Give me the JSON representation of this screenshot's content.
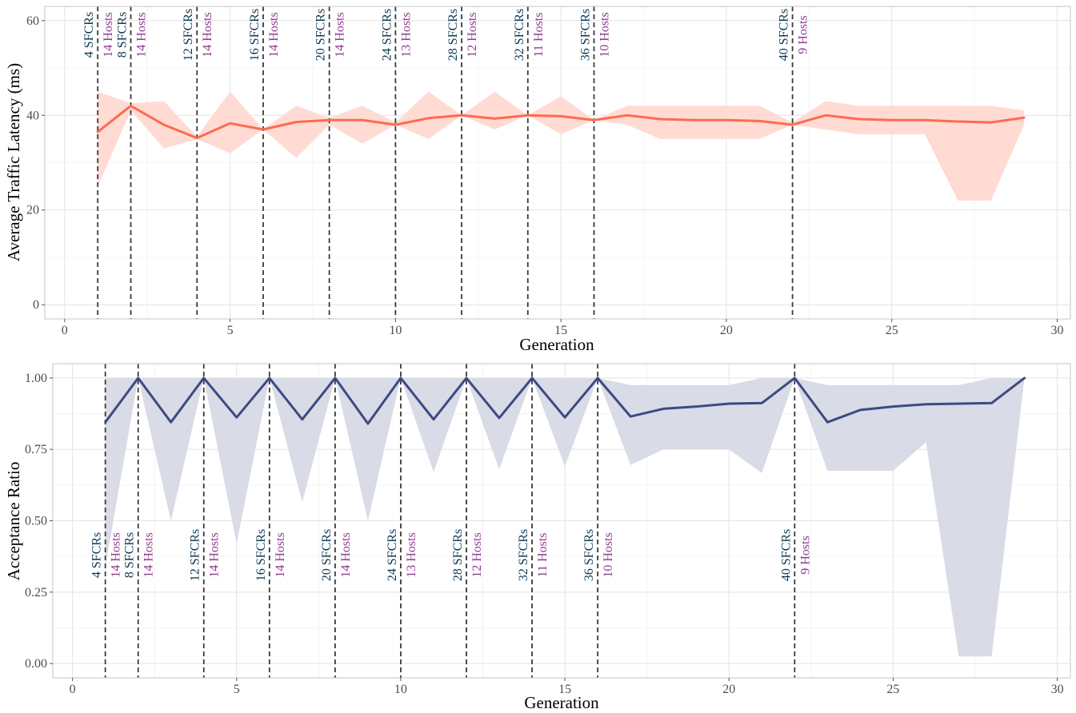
{
  "chart_data": [
    {
      "type": "line",
      "xlabel": "Generation",
      "ylabel": "Average Traffic Latency (ms)",
      "xlim": [
        -0.6,
        30.4
      ],
      "ylim": [
        -3,
        63
      ],
      "xticks": [
        0,
        5,
        10,
        15,
        20,
        25,
        30
      ],
      "yticks": [
        0,
        20,
        40,
        60
      ],
      "ytick_labels": [
        "0",
        "20",
        "40",
        "60"
      ],
      "grid": true,
      "line_color": "#fd6b51",
      "band_color": "#ffdbd3",
      "series": [
        {
          "x": [
            1,
            2,
            3,
            4,
            5,
            6,
            7,
            8,
            9,
            10,
            11,
            12,
            13,
            14,
            15,
            16,
            17,
            18,
            19,
            20,
            21,
            22,
            23,
            24,
            25,
            26,
            27,
            28,
            29
          ],
          "mean": [
            36.5,
            42,
            38,
            35.2,
            38.3,
            37,
            38.6,
            39,
            39,
            38,
            39.4,
            40,
            39.3,
            40,
            39.8,
            39,
            40,
            39.2,
            39,
            39,
            38.8,
            38,
            40,
            39.2,
            39,
            39,
            38.7,
            38.5,
            39.5
          ],
          "lower": [
            25,
            41,
            33,
            35,
            32,
            37,
            31,
            38,
            34,
            38,
            35,
            40,
            37,
            40,
            36,
            39,
            38,
            35,
            35,
            35,
            35,
            38,
            37,
            36,
            36,
            36,
            22,
            22,
            38
          ],
          "upper": [
            45,
            42.5,
            43,
            35.5,
            45,
            37,
            42,
            39.5,
            42,
            38.5,
            45,
            40,
            45,
            40,
            44,
            39,
            42,
            42,
            42,
            42,
            42,
            38.5,
            43,
            42,
            42,
            42,
            42,
            42,
            41
          ]
        }
      ],
      "markers": [
        {
          "x": 1,
          "sfcrs": "4 SFCRs",
          "hosts": "14 Hosts"
        },
        {
          "x": 2,
          "sfcrs": "8 SFCRs",
          "hosts": "14 Hosts"
        },
        {
          "x": 4,
          "sfcrs": "12 SFCRs",
          "hosts": "14 Hosts"
        },
        {
          "x": 6,
          "sfcrs": "16 SFCRs",
          "hosts": "14 Hosts"
        },
        {
          "x": 8,
          "sfcrs": "20 SFCRs",
          "hosts": "14 Hosts"
        },
        {
          "x": 10,
          "sfcrs": "24 SFCRs",
          "hosts": "13 Hosts"
        },
        {
          "x": 12,
          "sfcrs": "28 SFCRs",
          "hosts": "12 Hosts"
        },
        {
          "x": 14,
          "sfcrs": "32 SFCRs",
          "hosts": "11 Hosts"
        },
        {
          "x": 16,
          "sfcrs": "36 SFCRs",
          "hosts": "10 Hosts"
        },
        {
          "x": 22,
          "sfcrs": "40 SFCRs",
          "hosts": "9 Hosts"
        }
      ],
      "marker_label_value": 57,
      "sfcr_color": "#0b3954",
      "hosts_color": "#8e3b91"
    },
    {
      "type": "line",
      "xlabel": "Generation",
      "ylabel": "Acceptance Ratio",
      "xlim": [
        -0.6,
        30.4
      ],
      "ylim": [
        -0.05,
        1.05
      ],
      "xticks": [
        0,
        5,
        10,
        15,
        20,
        25,
        30
      ],
      "yticks": [
        0,
        0.25,
        0.5,
        0.75,
        1
      ],
      "ytick_labels": [
        "0.00",
        "0.25",
        "0.50",
        "0.75",
        "1.00"
      ],
      "grid": true,
      "line_color": "#3d4a82",
      "band_color": "#d9dbe6",
      "series": [
        {
          "x": [
            1,
            2,
            3,
            4,
            5,
            6,
            7,
            8,
            9,
            10,
            11,
            12,
            13,
            14,
            15,
            16,
            17,
            18,
            19,
            20,
            21,
            22,
            23,
            24,
            25,
            26,
            27,
            28,
            29
          ],
          "mean": [
            0.845,
            1,
            0.845,
            1,
            0.862,
            1,
            0.855,
            1,
            0.84,
            1,
            0.855,
            1,
            0.86,
            1,
            0.862,
            1,
            0.865,
            0.892,
            0.9,
            0.91,
            0.912,
            1,
            0.845,
            0.888,
            0.9,
            0.908,
            0.91,
            0.912,
            1
          ],
          "lower": [
            0.34,
            1,
            0.5,
            1,
            0.42,
            1,
            0.565,
            1,
            0.5,
            1,
            0.67,
            1,
            0.68,
            1,
            0.69,
            1,
            0.695,
            0.75,
            0.75,
            0.75,
            0.667,
            1,
            0.675,
            0.675,
            0.675,
            0.775,
            0.025,
            0.025,
            1
          ],
          "upper": [
            1,
            1,
            1,
            1,
            1,
            1,
            1,
            1,
            1,
            1,
            1,
            1,
            1,
            1,
            1,
            1,
            0.975,
            0.975,
            0.975,
            0.975,
            1,
            1,
            0.975,
            0.975,
            0.975,
            0.975,
            0.975,
            1,
            1
          ]
        }
      ],
      "markers": [
        {
          "x": 1,
          "sfcrs": "4 SFCRs",
          "hosts": "14 Hosts"
        },
        {
          "x": 2,
          "sfcrs": "8 SFCRs",
          "hosts": "14 Hosts"
        },
        {
          "x": 4,
          "sfcrs": "12 SFCRs",
          "hosts": "14 Hosts"
        },
        {
          "x": 6,
          "sfcrs": "16 SFCRs",
          "hosts": "14 Hosts"
        },
        {
          "x": 8,
          "sfcrs": "20 SFCRs",
          "hosts": "14 Hosts"
        },
        {
          "x": 10,
          "sfcrs": "24 SFCRs",
          "hosts": "13 Hosts"
        },
        {
          "x": 12,
          "sfcrs": "28 SFCRs",
          "hosts": "12 Hosts"
        },
        {
          "x": 14,
          "sfcrs": "32 SFCRs",
          "hosts": "11 Hosts"
        },
        {
          "x": 16,
          "sfcrs": "36 SFCRs",
          "hosts": "10 Hosts"
        },
        {
          "x": 22,
          "sfcrs": "40 SFCRs",
          "hosts": "9 Hosts"
        }
      ],
      "marker_label_value": 0.38,
      "sfcr_color": "#0b3954",
      "hosts_color": "#8e3b91"
    }
  ]
}
